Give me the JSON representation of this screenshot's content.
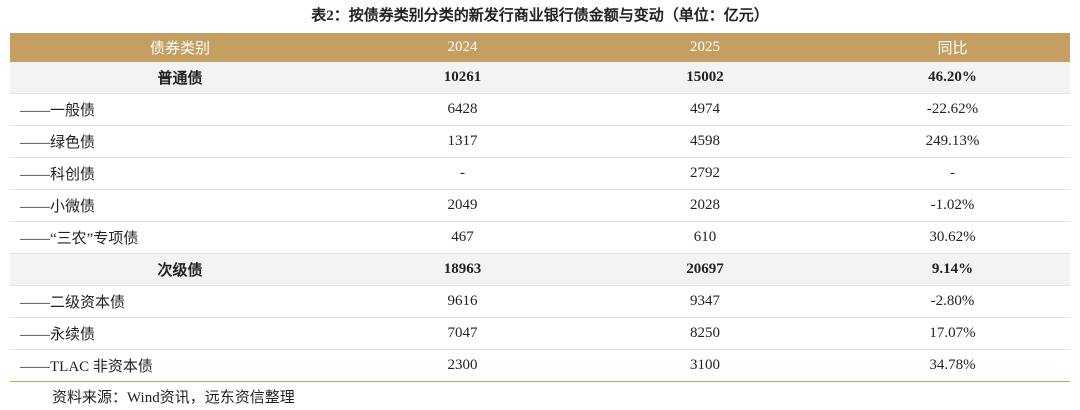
{
  "title": "表2：按债券类别分类的新发行商业银行债金额与变动（单位：亿元）",
  "table": {
    "header": [
      "债券类别",
      "2024",
      "2025",
      "同比"
    ],
    "rows": [
      [
        "普通债",
        "10261",
        "15002",
        "46.20%"
      ],
      [
        "——一般债",
        "6428",
        "4974",
        "-22.62%"
      ],
      [
        "——绿色债",
        "1317",
        "4598",
        "249.13%"
      ],
      [
        "——科创债",
        "-",
        "2792",
        "-"
      ],
      [
        "——小微债",
        "2049",
        "2028",
        "-1.02%"
      ],
      [
        "——“三农”专项债",
        "467",
        "610",
        "30.62%"
      ],
      [
        "次级债",
        "18963",
        "20697",
        "9.14%"
      ],
      [
        "——二级资本债",
        "9616",
        "9347",
        "-2.80%"
      ],
      [
        "——永续债",
        "7047",
        "8250",
        "17.07%"
      ],
      [
        "——TLAC 非资本债",
        "2300",
        "3100",
        "34.78%"
      ]
    ]
  },
  "source": "资料来源：Wind资讯，远东资信整理"
}
